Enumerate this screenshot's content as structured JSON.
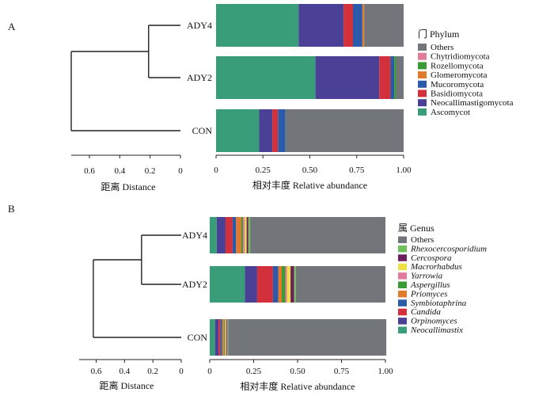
{
  "chart_data": [
    {
      "type": "bar",
      "panel_label": "A",
      "categories": [
        "ADY4",
        "ADY2",
        "CON"
      ],
      "legend_title": "门 Phylum",
      "legend_italic": false,
      "series": [
        {
          "name": "Ascomycot",
          "color": "#3a9d7a",
          "values": [
            0.44,
            0.53,
            0.23
          ]
        },
        {
          "name": "Neocallimastigomycota",
          "color": "#4a4197",
          "values": [
            0.24,
            0.34,
            0.07
          ]
        },
        {
          "name": "Basidiomycota",
          "color": "#d2313c",
          "values": [
            0.05,
            0.06,
            0.03
          ]
        },
        {
          "name": "Mucoromycota",
          "color": "#2b5aa8",
          "values": [
            0.05,
            0.02,
            0.04
          ]
        },
        {
          "name": "Glomeromycota",
          "color": "#e07a2d",
          "values": [
            0.01,
            0.0,
            0.0
          ]
        },
        {
          "name": "Rozellomycota",
          "color": "#3b9a36",
          "values": [
            0.0,
            0.01,
            0.0
          ]
        },
        {
          "name": "Chytridiomycota",
          "color": "#e07b9c",
          "values": [
            0.0,
            0.0,
            0.0
          ]
        },
        {
          "name": "Others",
          "color": "#72767a",
          "values": [
            0.21,
            0.04,
            0.63
          ]
        }
      ],
      "xlim": [
        0,
        1
      ],
      "xticks": [
        "0",
        "0.25",
        "0.50",
        "0.75",
        "1.00"
      ],
      "xlabel": "相对丰度 Relative abundance",
      "tree": {
        "xlabel": "距离 Distance",
        "xticks": [
          "0.6",
          "0.4",
          "0.2",
          "0"
        ],
        "xlim": [
          0.72,
          0
        ],
        "clusters": [
          {
            "members": [
              "ADY4",
              "ADY2"
            ],
            "height": 0.21
          },
          {
            "members": [
              "ADY4+ADY2",
              "CON"
            ],
            "height": 0.72
          }
        ]
      }
    },
    {
      "type": "bar",
      "panel_label": "B",
      "categories": [
        "ADY4",
        "ADY2",
        "CON"
      ],
      "legend_title": "属 Genus",
      "legend_italic": true,
      "series": [
        {
          "name": "Neocallimastix",
          "color": "#3a9d7a",
          "values": [
            0.04,
            0.2,
            0.03
          ]
        },
        {
          "name": "Orpinomyces",
          "color": "#4a4197",
          "values": [
            0.05,
            0.07,
            0.02
          ]
        },
        {
          "name": "Candida",
          "color": "#d2313c",
          "values": [
            0.04,
            0.09,
            0.01
          ]
        },
        {
          "name": "Symbiotaphrina",
          "color": "#2b5aa8",
          "values": [
            0.02,
            0.03,
            0.01
          ]
        },
        {
          "name": "Priomyces",
          "color": "#e07a2d",
          "values": [
            0.03,
            0.02,
            0.01
          ]
        },
        {
          "name": "Aspergillus",
          "color": "#3b9a36",
          "values": [
            0.01,
            0.02,
            0.005
          ]
        },
        {
          "name": "Yarrowia",
          "color": "#e07b9c",
          "values": [
            0.01,
            0.01,
            0.005
          ]
        },
        {
          "name": "Macrorhabdus",
          "color": "#f0e047",
          "values": [
            0.01,
            0.02,
            0.005
          ]
        },
        {
          "name": "Cercospora",
          "color": "#6d1f5e",
          "values": [
            0.01,
            0.02,
            0.005
          ]
        },
        {
          "name": "Rhexocercosporidium",
          "color": "#6fbf5a",
          "values": [
            0.01,
            0.01,
            0.005
          ]
        },
        {
          "name": "Others",
          "color": "#72767a",
          "values": [
            0.77,
            0.51,
            0.9
          ]
        }
      ],
      "xlim": [
        0,
        1
      ],
      "xticks": [
        "0",
        "0.25",
        "0.50",
        "0.75",
        "1.00"
      ],
      "xlabel": "相对丰度 Relative abundance",
      "tree": {
        "xlabel": "距离 Distance",
        "xticks": [
          "0.6",
          "0.4",
          "0.2",
          "0"
        ],
        "xlim": [
          0.72,
          0
        ],
        "clusters": [
          {
            "members": [
              "ADY4",
              "ADY2"
            ],
            "height": 0.28
          },
          {
            "members": [
              "ADY4+ADY2",
              "CON"
            ],
            "height": 0.62
          }
        ]
      }
    }
  ]
}
